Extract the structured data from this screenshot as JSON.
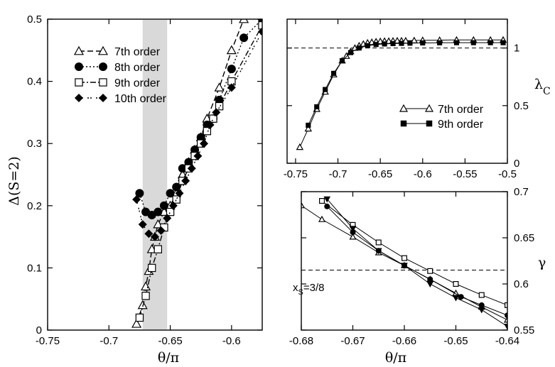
{
  "chart_data": [
    {
      "id": "left",
      "type": "line",
      "xlabel": "θ/π",
      "ylabel": "Δ(S=2)",
      "xlim": [
        -0.75,
        -0.575
      ],
      "ylim": [
        0,
        0.5
      ],
      "xticks": [
        -0.75,
        -0.7,
        -0.65,
        -0.6
      ],
      "xtick_labels": [
        "-0.75",
        "-0.7",
        "-0.65",
        "-0.6"
      ],
      "yticks": [
        0,
        0.1,
        0.2,
        0.3,
        0.4,
        0.5
      ],
      "ytick_labels": [
        "0",
        "0.1",
        "0.2",
        "0.3",
        "0.4",
        "0.5"
      ],
      "shaded_band": [
        -0.6725,
        -0.6525
      ],
      "legend_position": "top-left",
      "series": [
        {
          "name": "7th order",
          "marker": "triangle-open",
          "dash": "8,4",
          "x": [
            -0.6775,
            -0.6725,
            -0.67,
            -0.6675,
            -0.665,
            -0.6625,
            -0.66,
            -0.655,
            -0.65,
            -0.645,
            -0.64,
            -0.635,
            -0.63,
            -0.625,
            -0.62,
            -0.61,
            -0.6,
            -0.59
          ],
          "y": [
            0.01,
            0.04,
            0.07,
            0.095,
            0.13,
            0.15,
            0.17,
            0.19,
            0.2,
            0.22,
            0.25,
            0.27,
            0.29,
            0.31,
            0.34,
            0.39,
            0.45,
            0.5
          ]
        },
        {
          "name": "8th order",
          "marker": "circle-filled",
          "dash": "2,3",
          "x": [
            -0.675,
            -0.67,
            -0.665,
            -0.66,
            -0.655,
            -0.65,
            -0.645,
            -0.64,
            -0.635,
            -0.63,
            -0.625,
            -0.62,
            -0.615,
            -0.61,
            -0.6,
            -0.59,
            -0.575
          ],
          "y": [
            0.22,
            0.19,
            0.185,
            0.19,
            0.2,
            0.22,
            0.23,
            0.26,
            0.27,
            0.29,
            0.31,
            0.33,
            0.34,
            0.37,
            0.42,
            0.47,
            0.5
          ]
        },
        {
          "name": "9th order",
          "marker": "square-open",
          "dash": "8,3,2,3",
          "x": [
            -0.675,
            -0.67,
            -0.665,
            -0.66,
            -0.655,
            -0.65,
            -0.645,
            -0.64,
            -0.635,
            -0.63,
            -0.625,
            -0.62,
            -0.615,
            -0.61,
            -0.6,
            -0.575
          ],
          "y": [
            0.02,
            0.055,
            0.1,
            0.13,
            0.165,
            0.19,
            0.21,
            0.24,
            0.26,
            0.28,
            0.3,
            0.32,
            0.34,
            0.36,
            0.4,
            0.49
          ]
        },
        {
          "name": "10th order",
          "marker": "diamond-filled",
          "dash": "2,2,2,6",
          "x": [
            -0.6775,
            -0.6725,
            -0.6675,
            -0.6625,
            -0.6575,
            -0.6525,
            -0.6475,
            -0.6425,
            -0.6375,
            -0.6325,
            -0.6275,
            -0.6225,
            -0.6175,
            -0.6125,
            -0.6,
            -0.575
          ],
          "y": [
            0.21,
            0.17,
            0.155,
            0.15,
            0.16,
            0.18,
            0.2,
            0.22,
            0.24,
            0.26,
            0.28,
            0.3,
            0.33,
            0.35,
            0.39,
            0.48
          ]
        }
      ]
    },
    {
      "id": "top-right",
      "type": "line",
      "ylabel": "λ",
      "ylabel_sub": "C",
      "xlim": [
        -0.76,
        -0.5
      ],
      "ylim": [
        0,
        1.25
      ],
      "xticks": [
        -0.75,
        -0.7,
        -0.65,
        -0.6,
        -0.55,
        -0.5
      ],
      "xtick_labels": [
        "-0.75",
        "-0.7",
        "-0.65",
        "-0.6",
        "-0.55",
        "-0.5"
      ],
      "yticks": [
        0,
        0.5,
        1
      ],
      "ytick_labels": [
        "0",
        "0.5",
        "1"
      ],
      "reference_y": 1,
      "legend_position": "center-right",
      "series": [
        {
          "name": "7th order",
          "marker": "triangle-open",
          "x": [
            -0.745,
            -0.735,
            -0.725,
            -0.715,
            -0.705,
            -0.695,
            -0.69,
            -0.685,
            -0.68,
            -0.675,
            -0.67,
            -0.665,
            -0.66,
            -0.655,
            -0.65,
            -0.645,
            -0.64,
            -0.635,
            -0.63,
            -0.625,
            -0.62,
            -0.61,
            -0.6,
            -0.58,
            -0.56,
            -0.54,
            -0.52,
            -0.505
          ],
          "y": [
            0.14,
            0.3,
            0.47,
            0.62,
            0.77,
            0.89,
            0.93,
            0.97,
            1.0,
            1.02,
            1.035,
            1.045,
            1.05,
            1.055,
            1.058,
            1.06,
            1.06,
            1.062,
            1.063,
            1.063,
            1.063,
            1.065,
            1.067,
            1.068,
            1.07,
            1.07,
            1.07,
            1.07
          ]
        },
        {
          "name": "9th order",
          "marker": "square-filled",
          "x": [
            -0.735,
            -0.725,
            -0.715,
            -0.705,
            -0.695,
            -0.685,
            -0.675,
            -0.665,
            -0.655,
            -0.645,
            -0.635,
            -0.625,
            -0.615,
            -0.6,
            -0.58,
            -0.56,
            -0.54,
            -0.52,
            -0.505
          ],
          "y": [
            0.33,
            0.49,
            0.64,
            0.78,
            0.89,
            0.96,
            1.0,
            1.02,
            1.03,
            1.035,
            1.038,
            1.04,
            1.042,
            1.044,
            1.045,
            1.046,
            1.046,
            1.046,
            1.046
          ]
        }
      ]
    },
    {
      "id": "bottom-right",
      "type": "line",
      "xlabel": "θ/π",
      "ylabel": "γ",
      "xlim": [
        -0.68,
        -0.64
      ],
      "ylim": [
        0.55,
        0.7
      ],
      "xticks": [
        -0.68,
        -0.67,
        -0.66,
        -0.65,
        -0.64
      ],
      "xtick_labels": [
        "-0.68",
        "-0.67",
        "-0.66",
        "-0.65",
        "-0.64"
      ],
      "yticks": [
        0.55,
        0.6,
        0.65,
        0.7
      ],
      "ytick_labels": [
        "0.55",
        "0.6",
        "0.65",
        "0.7"
      ],
      "reference_y": 0.615,
      "annotation": {
        "text": "x",
        "sub": "S",
        "suffix": "=3/8"
      },
      "series": [
        {
          "marker": "triangle-open",
          "x": [
            -0.68,
            -0.676,
            -0.67,
            -0.665,
            -0.66,
            -0.655,
            -0.65,
            -0.645,
            -0.64
          ],
          "y": [
            0.685,
            0.67,
            0.651,
            0.634,
            0.62,
            0.605,
            0.59,
            0.575,
            0.561
          ]
        },
        {
          "marker": "square-open",
          "x": [
            -0.676,
            -0.67,
            -0.665,
            -0.66,
            -0.655,
            -0.65,
            -0.645,
            -0.64
          ],
          "y": [
            0.69,
            0.664,
            0.645,
            0.628,
            0.614,
            0.6,
            0.588,
            0.577
          ]
        },
        {
          "marker": "circle-filled",
          "x": [
            -0.675,
            -0.67,
            -0.665,
            -0.66,
            -0.655,
            -0.649,
            -0.645,
            -0.64
          ],
          "y": [
            0.684,
            0.656,
            0.636,
            0.62,
            0.605,
            0.586,
            0.577,
            0.566
          ]
        },
        {
          "marker": "triangle-down-filled",
          "x": [
            -0.675,
            -0.67,
            -0.665,
            -0.66,
            -0.655,
            -0.65,
            -0.645,
            -0.64
          ],
          "y": [
            0.692,
            0.66,
            0.636,
            0.62,
            0.6,
            0.585,
            0.572,
            0.554
          ]
        }
      ]
    }
  ]
}
